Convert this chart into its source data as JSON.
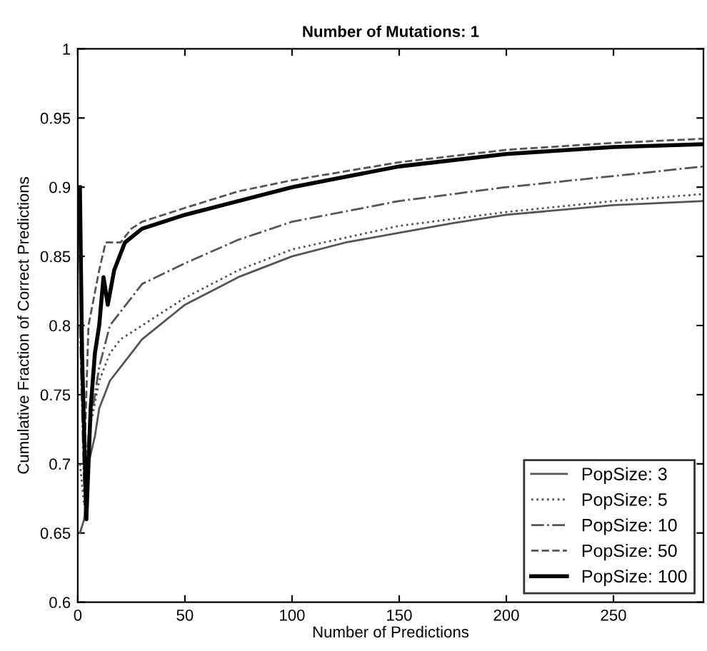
{
  "chart_data": {
    "type": "line",
    "title": "Number of Mutations: 1",
    "xlabel": "Number of Predictions",
    "ylabel": "Cumulative Fraction of Correct Predictions",
    "xlim": [
      0,
      292
    ],
    "ylim": [
      0.6,
      1
    ],
    "xticks": [
      0,
      50,
      100,
      150,
      200,
      250
    ],
    "yticks": [
      0.6,
      0.65,
      0.7,
      0.75,
      0.8,
      0.85,
      0.9,
      0.95,
      1
    ],
    "legend": "bottom right",
    "grid": false,
    "series": [
      {
        "name": "PopSize: 3",
        "color": "#555555",
        "line_style": "solid",
        "x": [
          1,
          3,
          5,
          8,
          10,
          15,
          20,
          30,
          50,
          75,
          100,
          125,
          150,
          175,
          200,
          250,
          292
        ],
        "values": [
          0.65,
          0.66,
          0.7,
          0.72,
          0.74,
          0.76,
          0.77,
          0.79,
          0.815,
          0.835,
          0.85,
          0.86,
          0.867,
          0.874,
          0.88,
          0.887,
          0.89
        ]
      },
      {
        "name": "PopSize: 5",
        "color": "#555555",
        "line_style": "dotted",
        "x": [
          1,
          3,
          5,
          10,
          15,
          20,
          30,
          50,
          75,
          100,
          150,
          200,
          250,
          292
        ],
        "values": [
          0.7,
          0.67,
          0.72,
          0.76,
          0.78,
          0.79,
          0.8,
          0.82,
          0.84,
          0.855,
          0.872,
          0.882,
          0.89,
          0.895
        ]
      },
      {
        "name": "PopSize: 10",
        "color": "#555555",
        "line_style": "dashdot",
        "x": [
          1,
          3,
          5,
          10,
          15,
          20,
          30,
          50,
          75,
          100,
          150,
          200,
          250,
          292
        ],
        "values": [
          0.8,
          0.68,
          0.72,
          0.77,
          0.8,
          0.81,
          0.83,
          0.845,
          0.862,
          0.875,
          0.89,
          0.9,
          0.908,
          0.915
        ]
      },
      {
        "name": "PopSize: 50",
        "color": "#555555",
        "line_style": "dashed",
        "x": [
          1,
          3,
          5,
          10,
          13,
          20,
          25,
          30,
          50,
          75,
          100,
          150,
          200,
          250,
          292
        ],
        "values": [
          0.85,
          0.7,
          0.8,
          0.84,
          0.86,
          0.86,
          0.87,
          0.875,
          0.885,
          0.897,
          0.905,
          0.918,
          0.927,
          0.932,
          0.935
        ]
      },
      {
        "name": "PopSize: 100",
        "color": "#000000",
        "line_style": "solid",
        "x": [
          1,
          2,
          4,
          6,
          8,
          10,
          12,
          14,
          17,
          22,
          30,
          50,
          75,
          100,
          150,
          200,
          250,
          292
        ],
        "values": [
          0.9,
          0.78,
          0.66,
          0.74,
          0.78,
          0.8,
          0.835,
          0.815,
          0.84,
          0.86,
          0.87,
          0.88,
          0.89,
          0.9,
          0.915,
          0.924,
          0.929,
          0.931
        ]
      }
    ]
  }
}
